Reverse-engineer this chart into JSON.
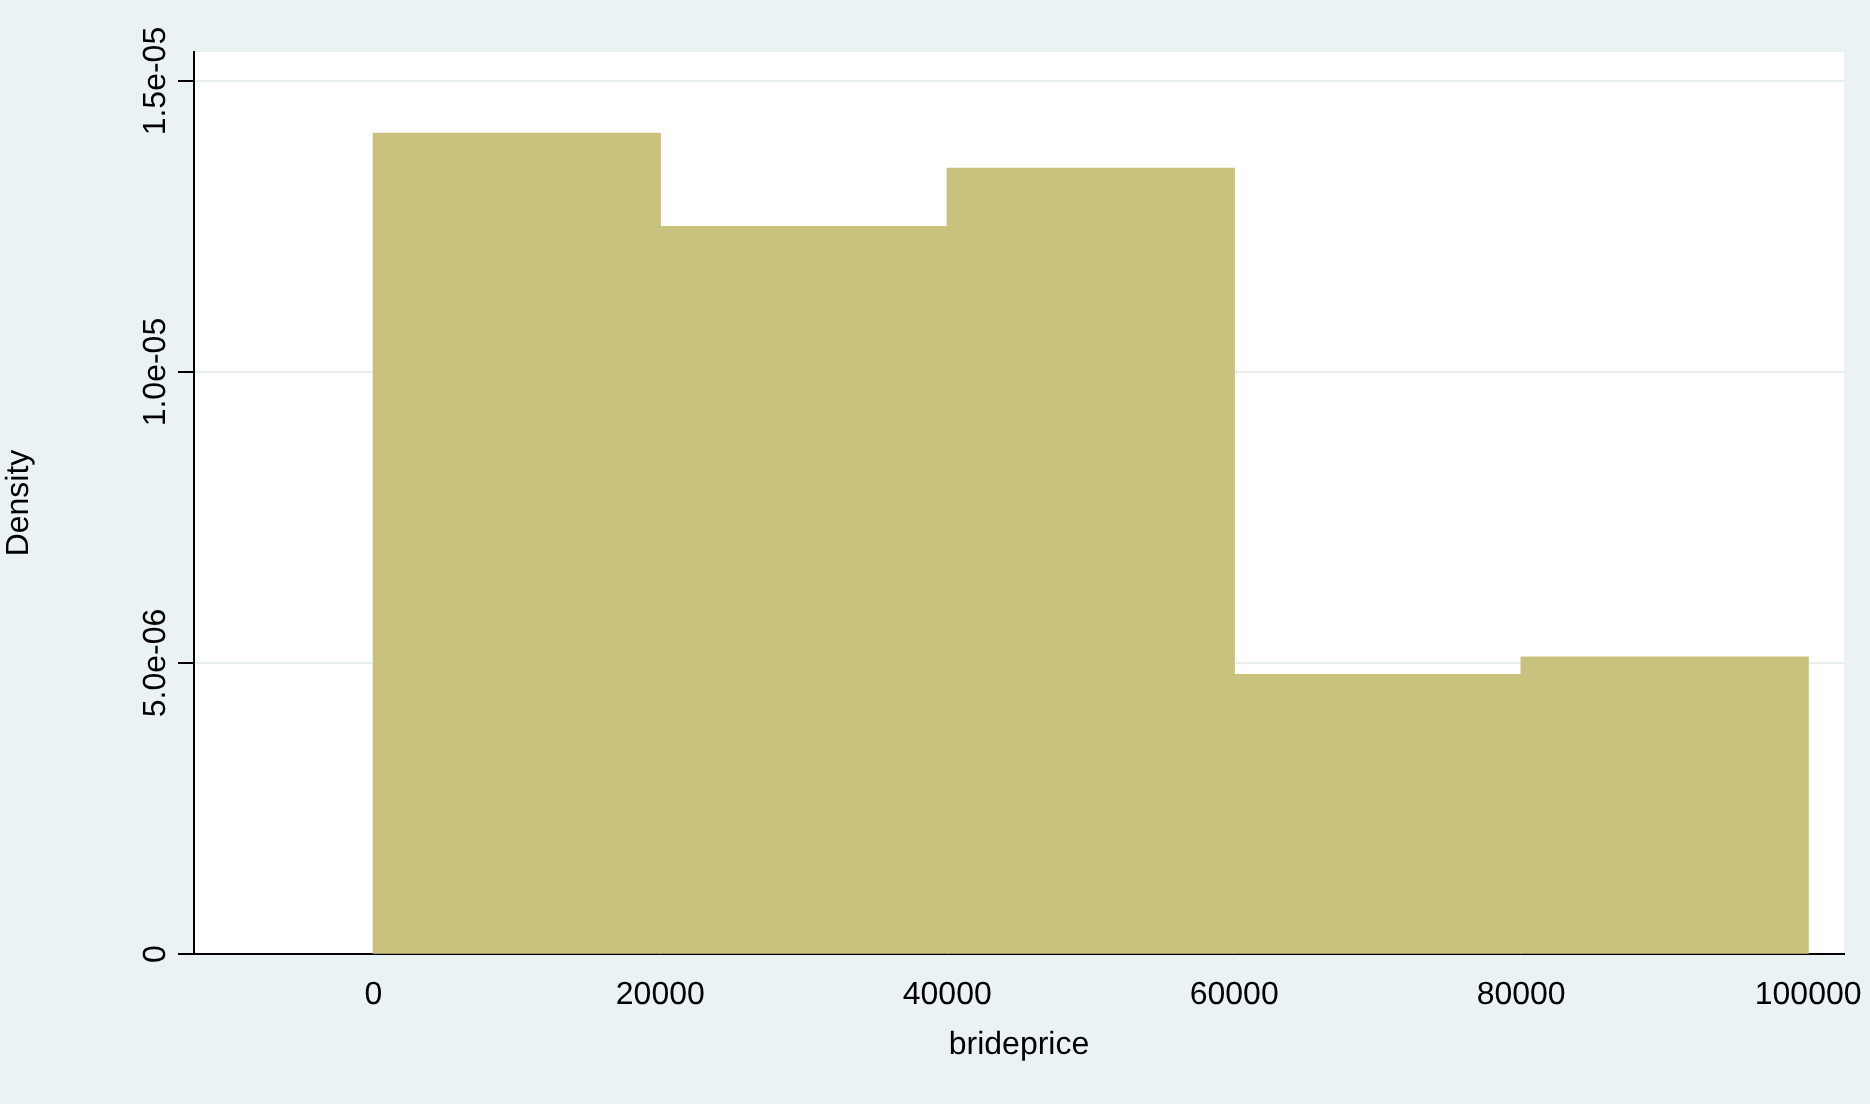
{
  "chart_data": {
    "type": "histogram",
    "xlabel": "brideprice",
    "ylabel": "Density",
    "bins": [
      0,
      20000,
      40000,
      60000,
      80000,
      100000
    ],
    "values": [
      1.41e-05,
      1.25e-05,
      1.35e-05,
      4.8e-06,
      5.1e-06
    ],
    "color": "#c9c27f",
    "xlim": [
      -12500,
      102500
    ],
    "xticks": [
      0,
      20000,
      40000,
      60000,
      80000,
      100000
    ],
    "ylim": [
      0,
      1.55e-05
    ],
    "yticks": [
      0,
      {
        "value": 5e-06,
        "label": "5.0e-06"
      },
      {
        "value": 1e-05,
        "label": "1.0e-05"
      },
      {
        "value": 1.5e-05,
        "label": "1.5e-05"
      }
    ],
    "grid": "y",
    "legend": false
  }
}
